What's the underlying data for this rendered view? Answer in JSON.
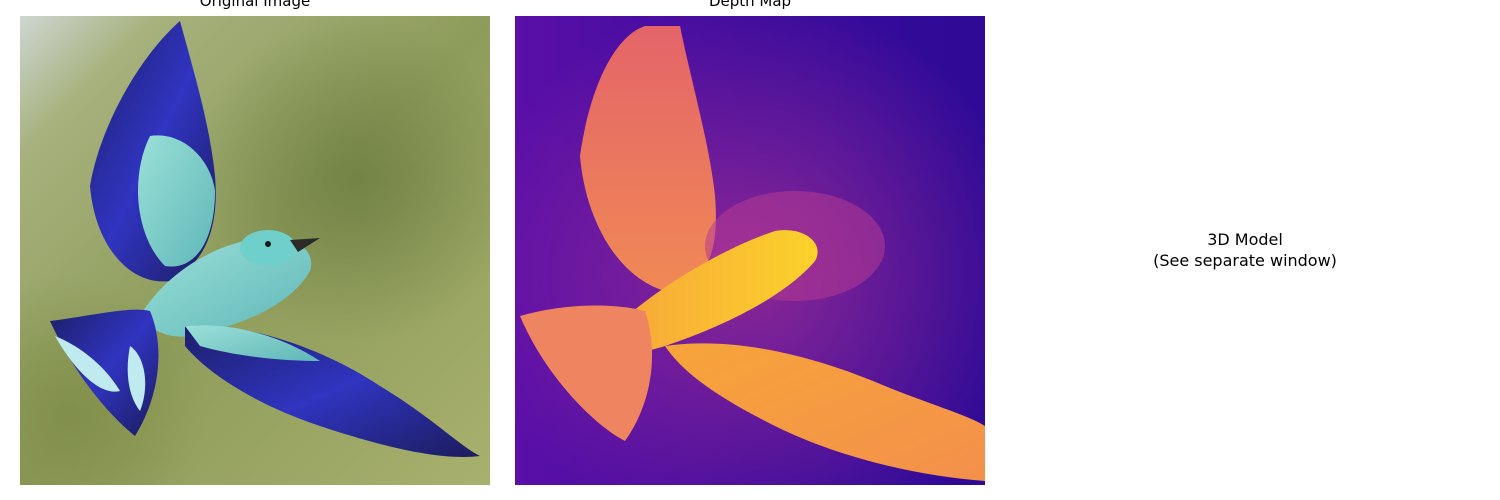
{
  "panels": {
    "original": {
      "title": "Original Image"
    },
    "depth": {
      "title": "Depth Map"
    },
    "model": {
      "line1": "3D Model",
      "line2": "(See separate window)"
    }
  },
  "icons": {
    "original_image": "bird-photo-icon",
    "depth_image": "depth-heatmap-icon"
  },
  "colors": {
    "bird_blue": "#2d2fb0",
    "bird_turquoise": "#7fd3cf",
    "background_green": "#8a9a5a",
    "depth_far": "#2e0a96",
    "depth_mid": "#c23a90",
    "depth_near": "#f7b92f"
  }
}
